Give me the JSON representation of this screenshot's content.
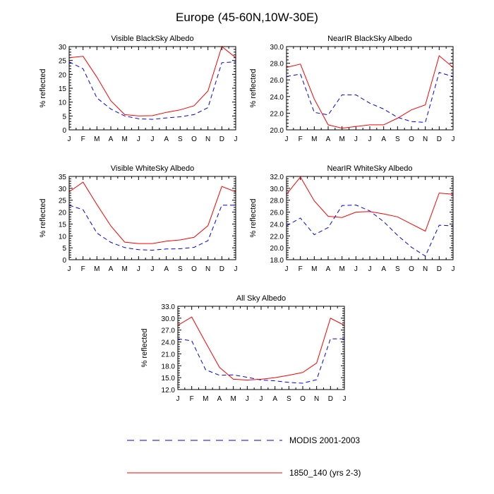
{
  "title": "Europe (45-60N,10W-30E)",
  "legend": [
    {
      "name": "MODIS 2001-2003",
      "color": "#0000ff",
      "dash": true
    },
    {
      "name": "1850_140 (yrs 2-3)",
      "color": "#ff0000",
      "dash": false
    }
  ],
  "chart_data": [
    {
      "type": "line",
      "title": "Visible BlackSky Albedo",
      "ylabel": "% reflected",
      "categories": [
        "J",
        "F",
        "M",
        "A",
        "M",
        "J",
        "J",
        "A",
        "S",
        "O",
        "N",
        "D",
        "J"
      ],
      "ylim": [
        0,
        30
      ],
      "yticks": [
        "0",
        "5",
        "10",
        "15",
        "20",
        "25",
        "30"
      ],
      "series": [
        {
          "name": "MODIS 2001-2003",
          "color": "#0000ff",
          "dash": true,
          "values": [
            24.5,
            22.0,
            11.5,
            7.5,
            5.0,
            4.0,
            3.8,
            4.3,
            4.7,
            5.5,
            8.0,
            24.2,
            24.5
          ]
        },
        {
          "name": "1850_140 (yrs 2-3)",
          "color": "#ff0000",
          "dash": false,
          "values": [
            26.0,
            26.5,
            19.0,
            10.5,
            5.5,
            5.0,
            5.1,
            6.3,
            7.2,
            8.7,
            14.0,
            30.0,
            26.0
          ]
        }
      ]
    },
    {
      "type": "line",
      "title": "NearIR BlackSky Albedo",
      "ylabel": "% reflected",
      "categories": [
        "J",
        "F",
        "M",
        "A",
        "M",
        "J",
        "J",
        "A",
        "S",
        "O",
        "N",
        "D",
        "J"
      ],
      "ylim": [
        20,
        30
      ],
      "yticks": [
        "20.0",
        "22.0",
        "24.0",
        "26.0",
        "28.0",
        "30.0"
      ],
      "series": [
        {
          "name": "MODIS 2001-2003",
          "color": "#0000ff",
          "dash": true,
          "values": [
            26.4,
            26.7,
            22.1,
            21.8,
            24.2,
            24.2,
            23.2,
            22.5,
            21.5,
            21.0,
            20.9,
            26.9,
            26.4
          ]
        },
        {
          "name": "1850_140 (yrs 2-3)",
          "color": "#ff0000",
          "dash": false,
          "values": [
            27.5,
            27.9,
            23.7,
            20.6,
            20.2,
            20.4,
            20.6,
            20.6,
            21.4,
            22.4,
            23.0,
            28.9,
            27.5
          ]
        }
      ]
    },
    {
      "type": "line",
      "title": "Visible WhiteSky Albedo",
      "ylabel": "% reflected",
      "categories": [
        "J",
        "F",
        "M",
        "A",
        "M",
        "J",
        "J",
        "A",
        "S",
        "O",
        "N",
        "D",
        "J"
      ],
      "ylim": [
        0,
        35
      ],
      "yticks": [
        "0",
        "5",
        "10",
        "15",
        "20",
        "25",
        "30",
        "35"
      ],
      "series": [
        {
          "name": "MODIS 2001-2003",
          "color": "#0000ff",
          "dash": true,
          "values": [
            22.9,
            21.0,
            11.2,
            7.3,
            5.1,
            4.2,
            4.0,
            4.5,
            4.6,
            5.2,
            8.0,
            22.9,
            22.9
          ]
        },
        {
          "name": "1850_140 (yrs 2-3)",
          "color": "#ff0000",
          "dash": false,
          "values": [
            28.5,
            32.6,
            23.2,
            14.2,
            7.4,
            6.8,
            6.8,
            7.8,
            8.3,
            9.4,
            14.3,
            30.8,
            28.5
          ]
        }
      ]
    },
    {
      "type": "line",
      "title": "NearIR WhiteSky Albedo",
      "ylabel": "% reflected",
      "categories": [
        "J",
        "F",
        "M",
        "A",
        "M",
        "J",
        "J",
        "A",
        "S",
        "O",
        "N",
        "D",
        "J"
      ],
      "ylim": [
        18,
        32
      ],
      "yticks": [
        "18.0",
        "20.0",
        "22.0",
        "24.0",
        "26.0",
        "28.0",
        "30.0",
        "32.0"
      ],
      "series": [
        {
          "name": "MODIS 2001-2003",
          "color": "#0000ff",
          "dash": true,
          "values": [
            23.7,
            25.0,
            22.2,
            23.4,
            27.1,
            27.2,
            26.2,
            24.4,
            22.1,
            20.1,
            18.6,
            23.8,
            23.7
          ]
        },
        {
          "name": "1850_140 (yrs 2-3)",
          "color": "#ff0000",
          "dash": false,
          "values": [
            29.0,
            31.9,
            27.9,
            25.3,
            25.1,
            26.0,
            26.1,
            25.7,
            25.2,
            24.0,
            22.8,
            29.2,
            29.0
          ]
        }
      ]
    },
    {
      "type": "line",
      "title": "All Sky Albedo",
      "ylabel": "% reflected",
      "categories": [
        "J",
        "F",
        "M",
        "A",
        "M",
        "J",
        "J",
        "A",
        "S",
        "O",
        "N",
        "D",
        "J"
      ],
      "ylim": [
        12,
        33
      ],
      "yticks": [
        "12.0",
        "15.0",
        "18.0",
        "21.0",
        "24.0",
        "27.0",
        "30.0",
        "33.0"
      ],
      "series": [
        {
          "name": "MODIS 2001-2003",
          "color": "#0000ff",
          "dash": true,
          "values": [
            24.8,
            24.3,
            17.0,
            15.6,
            15.7,
            15.1,
            14.4,
            14.2,
            13.8,
            13.6,
            14.5,
            24.8,
            24.8
          ]
        },
        {
          "name": "1850_140 (yrs 2-3)",
          "color": "#ff0000",
          "dash": false,
          "values": [
            28.2,
            30.3,
            23.9,
            17.6,
            14.6,
            14.4,
            14.6,
            15.0,
            15.6,
            16.3,
            18.7,
            30.0,
            28.2
          ]
        }
      ]
    }
  ]
}
